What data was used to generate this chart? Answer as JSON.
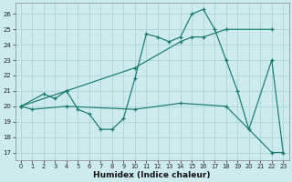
{
  "xlabel": "Humidex (Indice chaleur)",
  "background_color": "#cdeaed",
  "grid_color": "#b0d8db",
  "line_color": "#1a7a6e",
  "xlim": [
    -0.5,
    23.5
  ],
  "ylim": [
    16.5,
    26.7
  ],
  "yticks": [
    17,
    18,
    19,
    20,
    21,
    22,
    23,
    24,
    25,
    26
  ],
  "xticks": [
    0,
    1,
    2,
    3,
    4,
    5,
    6,
    7,
    8,
    9,
    10,
    11,
    12,
    13,
    14,
    15,
    16,
    17,
    18,
    19,
    20,
    21,
    22,
    23
  ],
  "series": [
    {
      "x": [
        0,
        2,
        3,
        4,
        5,
        6,
        7,
        8,
        9,
        10,
        11,
        12,
        13,
        14,
        15,
        16,
        17,
        18,
        19,
        20,
        22,
        23
      ],
      "y": [
        20,
        20.8,
        20.5,
        21,
        19.8,
        19.5,
        18.5,
        18.5,
        19.2,
        21.8,
        24.7,
        24.5,
        24.2,
        24.5,
        26.0,
        26.3,
        25.0,
        23.0,
        21.0,
        18.5,
        23.0,
        17.0
      ]
    },
    {
      "x": [
        0,
        4,
        10,
        14,
        15,
        16,
        18,
        22
      ],
      "y": [
        20,
        21,
        22.5,
        24.2,
        24.5,
        24.5,
        25.0,
        25.0
      ]
    },
    {
      "x": [
        0,
        1,
        4,
        10,
        14,
        18,
        22,
        23
      ],
      "y": [
        20,
        19.8,
        20.0,
        19.8,
        20.2,
        20.0,
        17.0,
        17.0
      ]
    }
  ]
}
